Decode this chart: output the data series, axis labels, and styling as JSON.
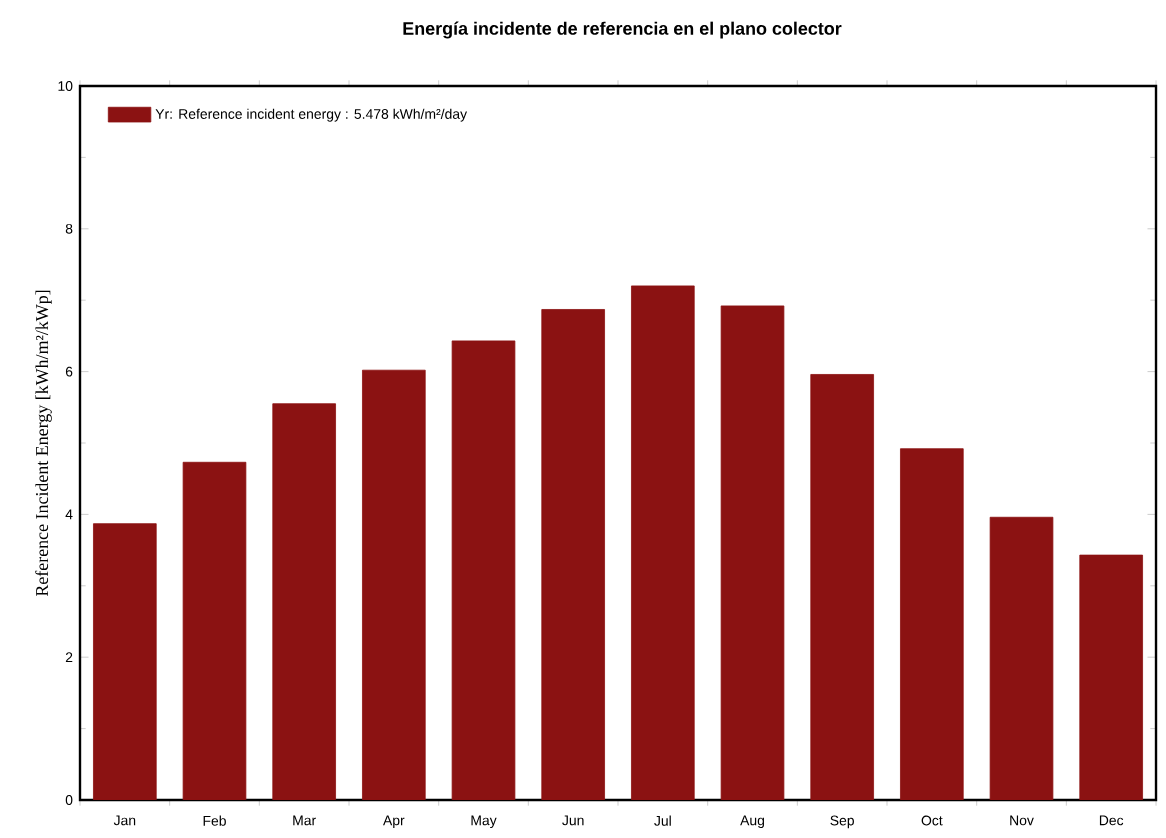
{
  "chart_data": {
    "type": "bar",
    "title": "Energía incidente de referencia en el plano colector",
    "ylabel": "Reference Incident Energy [kWh/m²/kWp]",
    "categories": [
      "Jan",
      "Feb",
      "Mar",
      "Apr",
      "May",
      "Jun",
      "Jul",
      "Aug",
      "Sep",
      "Oct",
      "Nov",
      "Dec"
    ],
    "series": [
      {
        "name": "Yr: Reference incident energy :  5.478 kWh/m²/day",
        "color": "#8b1212",
        "values": [
          3.87,
          4.73,
          5.55,
          6.02,
          6.43,
          6.87,
          7.2,
          6.92,
          5.96,
          4.92,
          3.96,
          3.43
        ]
      }
    ],
    "ylim": [
      0,
      10
    ],
    "yticks": [
      0,
      2,
      4,
      6,
      8,
      10
    ],
    "legend": "top left",
    "grid": false
  }
}
